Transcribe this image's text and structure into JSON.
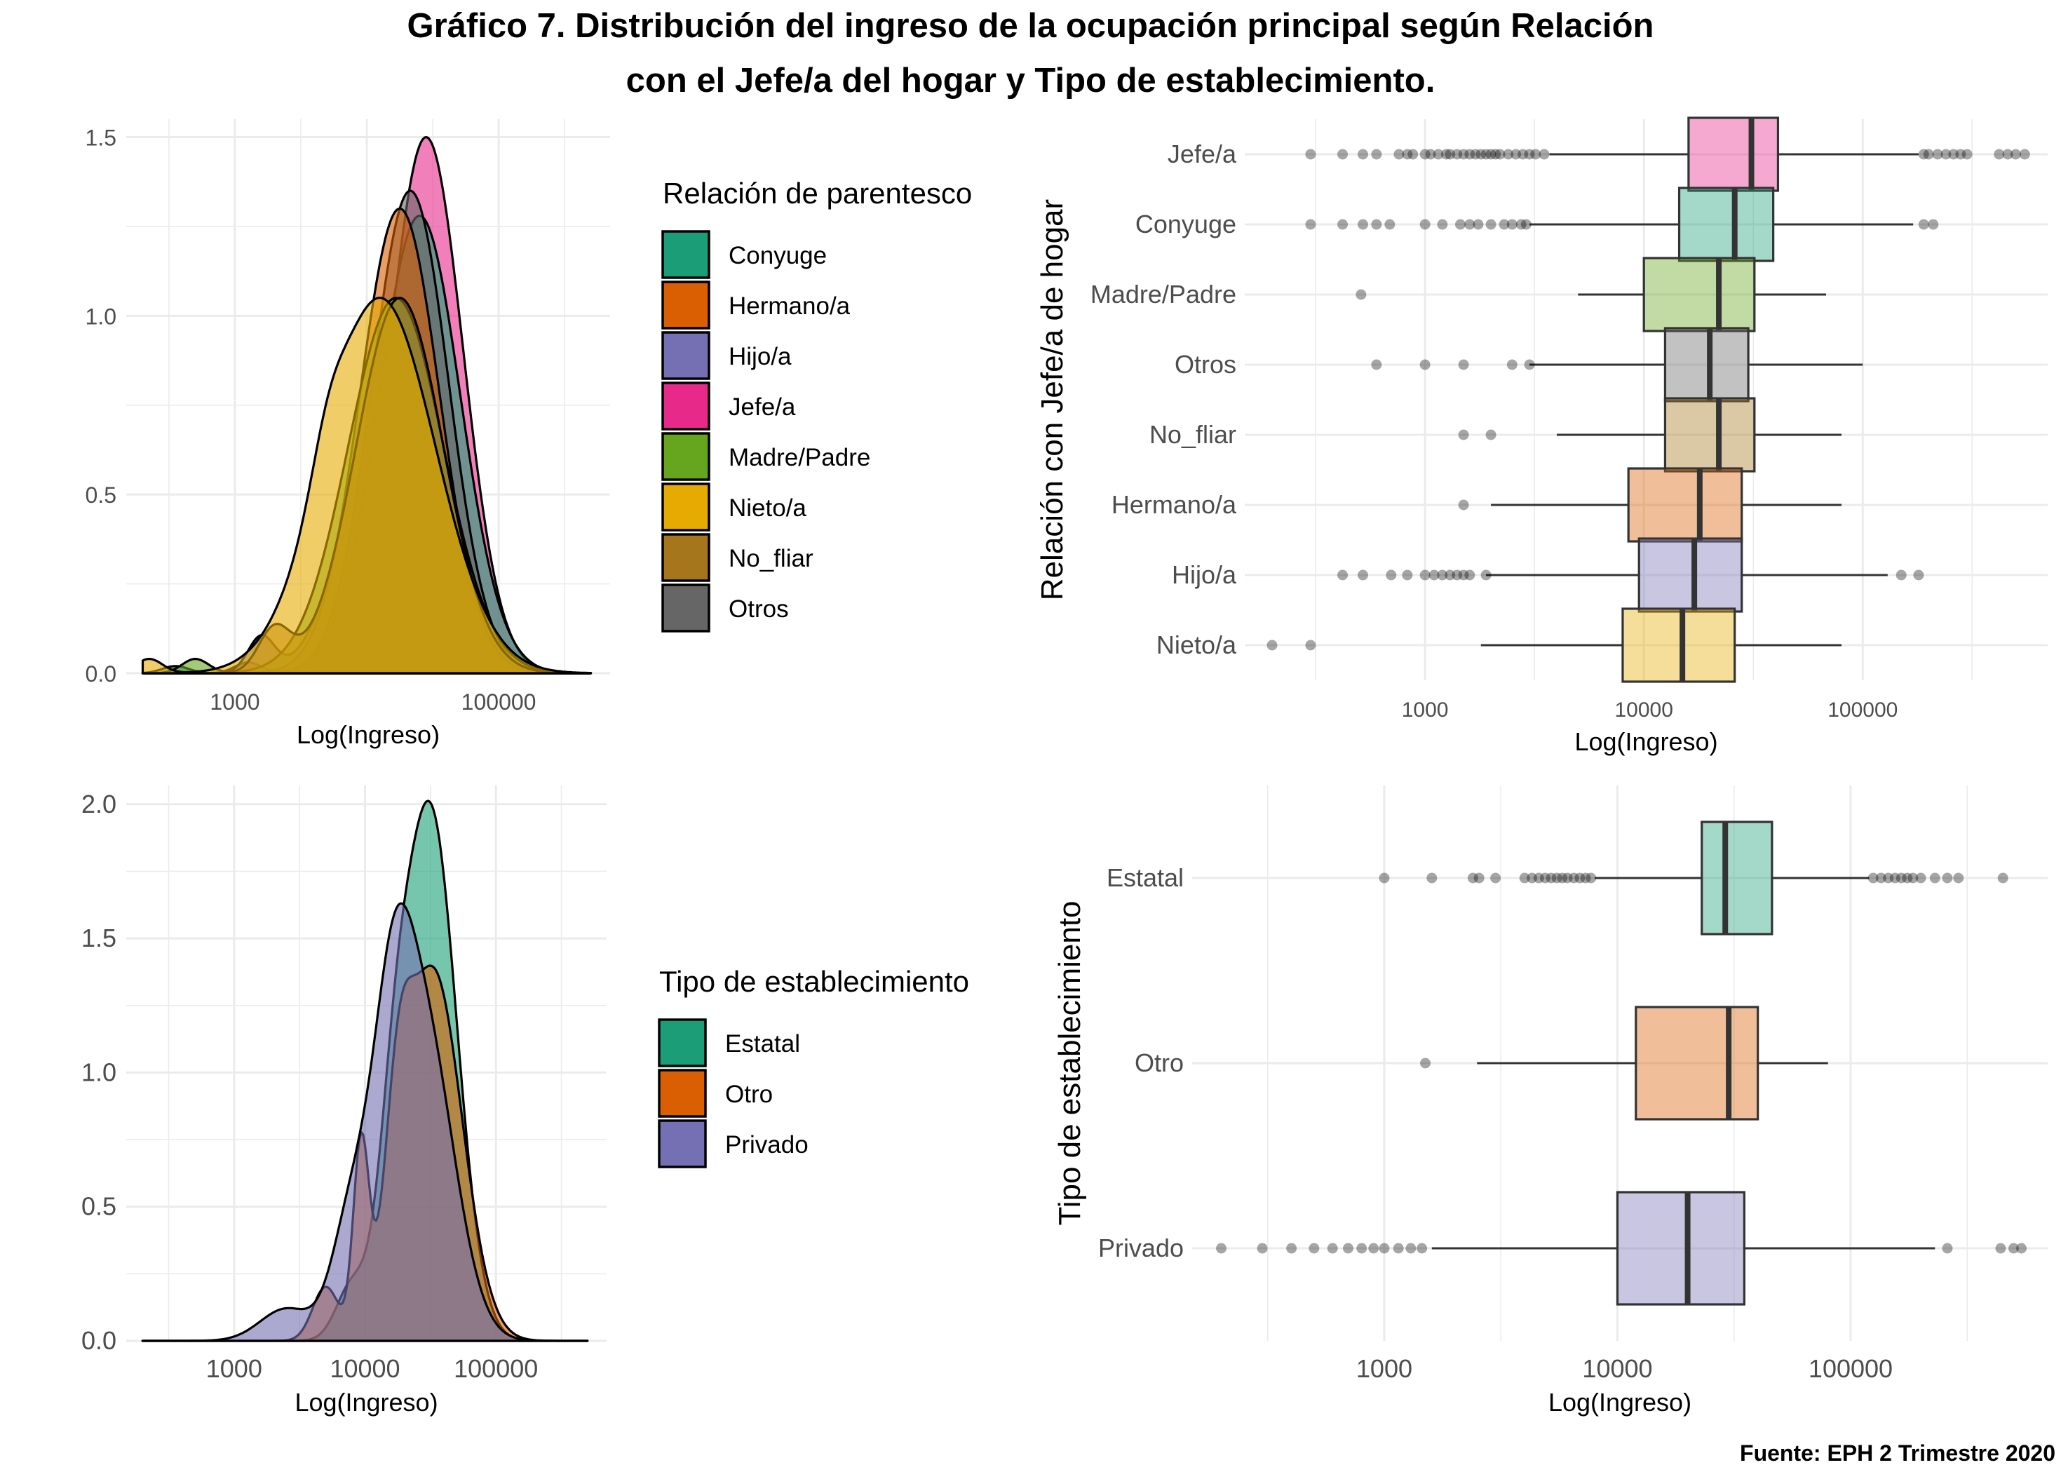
{
  "title": {
    "line1": "Gráfico 7. Distribución del ingreso de la ocupación principal según Relación",
    "line2": "con el Jefe/a del hogar y Tipo de establecimiento."
  },
  "source": "Fuente: EPH 2 Trimestre 2020",
  "colors": {
    "Conyuge": "#1b9e77",
    "Hermano/a": "#d95f02",
    "Hijo/a": "#7570b3",
    "Jefe/a": "#e7298a",
    "Madre/Padre": "#66a61e",
    "Nieto/a": "#e6ab02",
    "No_fliar": "#a6761d",
    "Otros": "#666666",
    "Estatal": "#1b9e77",
    "Otro": "#d95f02",
    "Privado": "#7570b3"
  },
  "chart_data": [
    {
      "id": "density-relacion",
      "type": "area",
      "subtype": "density",
      "title": "",
      "xlabel": "Log(Ingreso)",
      "ylabel": "",
      "x_scale": "log10",
      "xlim": [
        150,
        700000
      ],
      "ylim": [
        0,
        1.55
      ],
      "x_ticks": [
        1000,
        100000
      ],
      "x_tick_labels": [
        "1000",
        "100000"
      ],
      "y_ticks": [
        0.0,
        0.5,
        1.0,
        1.5
      ],
      "y_tick_labels": [
        "0.0",
        "0.5",
        "1.0",
        "1.5"
      ],
      "grid": true,
      "legend": {
        "title": "Relación de parentesco",
        "position": "right",
        "items": [
          "Conyuge",
          "Hermano/a",
          "Hijo/a",
          "Jefe/a",
          "Madre/Padre",
          "Nieto/a",
          "No_fliar",
          "Otros"
        ]
      },
      "series": [
        {
          "name": "Jefe/a",
          "mean_log10": 4.45,
          "sd_log10": 0.28,
          "peak": 1.5,
          "extra_bumps": []
        },
        {
          "name": "Conyuge",
          "mean_log10": 4.4,
          "sd_log10": 0.31,
          "peak": 1.28,
          "extra_bumps": [
            [
              2.55,
              0.02,
              0.1
            ]
          ]
        },
        {
          "name": "Otros",
          "mean_log10": 4.33,
          "sd_log10": 0.29,
          "peak": 1.35,
          "extra_bumps": [
            [
              3.1,
              0.03,
              0.1
            ]
          ]
        },
        {
          "name": "Hermano/a",
          "mean_log10": 4.25,
          "sd_log10": 0.3,
          "peak": 1.3,
          "extra_bumps": []
        },
        {
          "name": "Hijo/a",
          "mean_log10": 4.25,
          "sd_log10": 0.33,
          "peak": 1.05,
          "extra_bumps": [
            [
              3.2,
              0.1,
              0.1
            ]
          ]
        },
        {
          "name": "Madre/Padre",
          "mean_log10": 4.22,
          "sd_log10": 0.36,
          "peak": 1.05,
          "extra_bumps": [
            [
              2.7,
              0.04,
              0.1
            ]
          ]
        },
        {
          "name": "No_fliar",
          "mean_log10": 4.25,
          "sd_log10": 0.33,
          "peak": 1.05,
          "extra_bumps": [
            [
              3.3,
              0.12,
              0.12
            ]
          ]
        },
        {
          "name": "Nieto/a",
          "mean_log10": 4.1,
          "sd_log10": 0.42,
          "peak": 1.05,
          "extra_bumps": [
            [
              2.35,
              0.04,
              0.1
            ],
            [
              3.7,
              0.1,
              0.12
            ]
          ]
        }
      ]
    },
    {
      "id": "box-relacion",
      "type": "box",
      "orientation": "horizontal",
      "title": "",
      "xlabel": "Log(Ingreso)",
      "ylabel": "Relación con Jefe/a de hogar",
      "x_scale": "log10",
      "xlim": [
        150,
        700000
      ],
      "x_ticks": [
        1000,
        10000,
        100000
      ],
      "x_tick_labels": [
        "1000",
        "10000",
        "100000"
      ],
      "grid": true,
      "categories": [
        "Jefe/a",
        "Conyuge",
        "Madre/Padre",
        "Otros",
        "No_fliar",
        "Hermano/a",
        "Hijo/a",
        "Nieto/a"
      ],
      "boxes": [
        {
          "name": "Jefe/a",
          "whisker_low": 3700,
          "q1": 16000,
          "median": 31000,
          "q3": 41000,
          "whisker_high": 180000,
          "outliers": [
            300,
            420,
            520,
            600,
            760,
            830,
            880,
            1000,
            1060,
            1150,
            1250,
            1300,
            1400,
            1500,
            1600,
            1700,
            1800,
            1900,
            2000,
            2100,
            2200,
            2400,
            2600,
            2800,
            3000,
            3200,
            3500,
            190000,
            200000,
            220000,
            240000,
            260000,
            280000,
            300000,
            420000,
            460000,
            500000,
            550000
          ]
        },
        {
          "name": "Conyuge",
          "whisker_low": 3000,
          "q1": 14500,
          "median": 26000,
          "q3": 39000,
          "whisker_high": 170000,
          "outliers": [
            300,
            420,
            520,
            600,
            690,
            1000,
            1200,
            1450,
            1600,
            1750,
            2000,
            2300,
            2500,
            2750,
            2900,
            190000,
            210000
          ]
        },
        {
          "name": "Madre/Padre",
          "whisker_low": 5000,
          "q1": 10000,
          "median": 22000,
          "q3": 32000,
          "whisker_high": 68000,
          "outliers": [
            510
          ]
        },
        {
          "name": "Otros",
          "whisker_low": 3000,
          "q1": 12500,
          "median": 20000,
          "q3": 30000,
          "whisker_high": 100000,
          "outliers": [
            600,
            1000,
            1500,
            2500,
            3000
          ]
        },
        {
          "name": "No_fliar",
          "whisker_low": 4000,
          "q1": 12500,
          "median": 22000,
          "q3": 32000,
          "whisker_high": 80000,
          "outliers": [
            1500,
            2000
          ]
        },
        {
          "name": "Hermano/a",
          "whisker_low": 2000,
          "q1": 8500,
          "median": 18000,
          "q3": 28000,
          "whisker_high": 80000,
          "outliers": [
            1500
          ]
        },
        {
          "name": "Hijo/a",
          "whisker_low": 1900,
          "q1": 9500,
          "median": 17000,
          "q3": 28000,
          "whisker_high": 130000,
          "outliers": [
            420,
            520,
            700,
            830,
            1000,
            1100,
            1200,
            1300,
            1400,
            1500,
            1600,
            1900,
            150000,
            180000
          ]
        },
        {
          "name": "Nieto/a",
          "whisker_low": 1800,
          "q1": 8000,
          "median": 15000,
          "q3": 26000,
          "whisker_high": 80000,
          "outliers": [
            200,
            300
          ]
        }
      ]
    },
    {
      "id": "density-establecimiento",
      "type": "area",
      "subtype": "density",
      "title": "",
      "xlabel": "Log(Ingreso)",
      "ylabel": "",
      "x_scale": "log10",
      "xlim": [
        150,
        700000
      ],
      "ylim": [
        0,
        2.07
      ],
      "x_ticks": [
        1000,
        10000,
        100000
      ],
      "x_tick_labels": [
        "1000",
        "10000",
        "100000"
      ],
      "y_ticks": [
        0.0,
        0.5,
        1.0,
        1.5,
        2.0
      ],
      "y_tick_labels": [
        "0.0",
        "0.5",
        "1.0",
        "1.5",
        "2.0"
      ],
      "grid": true,
      "legend": {
        "title": "Tipo de establecimiento",
        "position": "right",
        "items": [
          "Estatal",
          "Otro",
          "Privado"
        ]
      },
      "series": [
        {
          "name": "Estatal",
          "mean_log10": 4.5,
          "sd_log10": 0.2,
          "peak": 1.97,
          "extra_bumps": [
            [
              4.22,
              0.55,
              0.12
            ],
            [
              3.9,
              0.2,
              0.12
            ]
          ]
        },
        {
          "name": "Otro",
          "mean_log10": 4.52,
          "sd_log10": 0.22,
          "peak": 1.38,
          "extra_bumps": [
            [
              3.97,
              0.7,
              0.06
            ],
            [
              3.7,
              0.2,
              0.1
            ],
            [
              4.25,
              0.55,
              0.1
            ]
          ]
        },
        {
          "name": "Privado",
          "mean_log10": 4.45,
          "sd_log10": 0.23,
          "peak": 1.15,
          "extra_bumps": [
            [
              4.2,
              0.85,
              0.15
            ],
            [
              3.9,
              0.45,
              0.15
            ],
            [
              3.4,
              0.12,
              0.2
            ]
          ]
        }
      ]
    },
    {
      "id": "box-establecimiento",
      "type": "box",
      "orientation": "horizontal",
      "title": "",
      "xlabel": "Log(Ingreso)",
      "ylabel": "Tipo de establecimiento",
      "x_scale": "log10",
      "xlim": [
        150,
        700000
      ],
      "x_ticks": [
        1000,
        10000,
        100000
      ],
      "x_tick_labels": [
        "1000",
        "10000",
        "100000"
      ],
      "grid": true,
      "categories": [
        "Estatal",
        "Otro",
        "Privado"
      ],
      "boxes": [
        {
          "name": "Estatal",
          "whisker_low": 8000,
          "q1": 23000,
          "median": 29000,
          "q3": 46000,
          "whisker_high": 120000,
          "outliers": [
            1000,
            1600,
            2400,
            2550,
            3000,
            4000,
            4300,
            4600,
            4900,
            5200,
            5500,
            5800,
            6100,
            6500,
            6900,
            7300,
            7700,
            125000,
            135000,
            145000,
            155000,
            165000,
            175000,
            185000,
            200000,
            230000,
            260000,
            290000,
            450000
          ]
        },
        {
          "name": "Otro",
          "whisker_low": 2500,
          "q1": 12000,
          "median": 30000,
          "q3": 40000,
          "whisker_high": 80000,
          "outliers": [
            1500
          ]
        },
        {
          "name": "Privado",
          "whisker_low": 1600,
          "q1": 10000,
          "median": 20000,
          "q3": 35000,
          "whisker_high": 230000,
          "outliers": [
            200,
            300,
            400,
            500,
            600,
            700,
            800,
            900,
            1000,
            1150,
            1300,
            1450,
            260000,
            440000,
            500000,
            540000
          ]
        }
      ]
    }
  ]
}
